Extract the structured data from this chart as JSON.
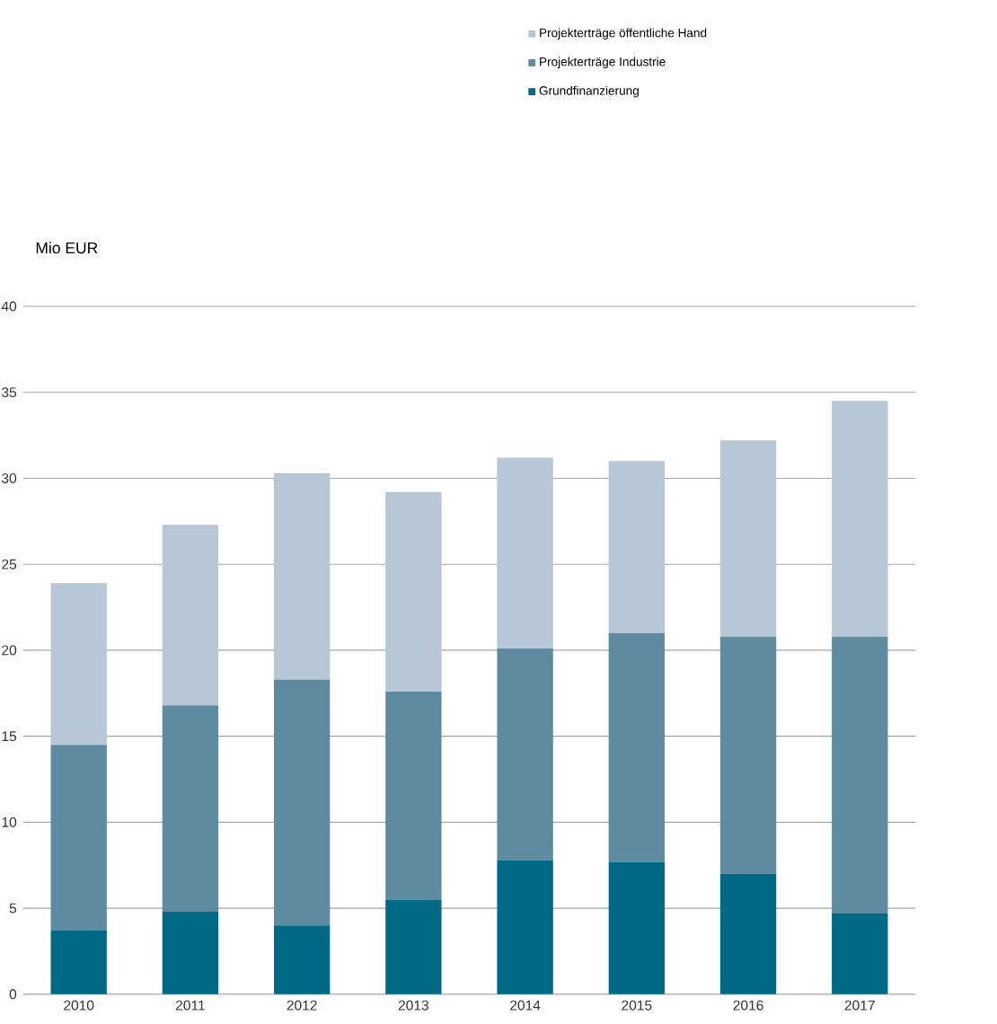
{
  "chart_data": {
    "type": "bar",
    "stacked": true,
    "ylabel": "Mio EUR",
    "categories": [
      "2010",
      "2011",
      "2012",
      "2013",
      "2014",
      "2015",
      "2016",
      "2017"
    ],
    "series": [
      {
        "name": "Grundfinanzierung",
        "color": "#006a86",
        "values": [
          3.7,
          4.8,
          4.0,
          5.5,
          7.8,
          7.7,
          7.0,
          4.7
        ]
      },
      {
        "name": "Projekterträge Industrie",
        "color": "#5e8ba0",
        "values": [
          10.8,
          12.0,
          14.3,
          12.1,
          12.3,
          13.3,
          13.8,
          16.1
        ]
      },
      {
        "name": "Projekterträge öffentliche Hand",
        "color": "#b8c7d6",
        "values": [
          9.4,
          10.5,
          12.0,
          11.6,
          11.1,
          10.0,
          11.4,
          13.7
        ]
      }
    ],
    "ylim": [
      0,
      40
    ],
    "yticks": [
      0,
      5,
      10,
      15,
      20,
      25,
      30,
      35,
      40
    ],
    "grid": "y",
    "legend": "top right"
  }
}
